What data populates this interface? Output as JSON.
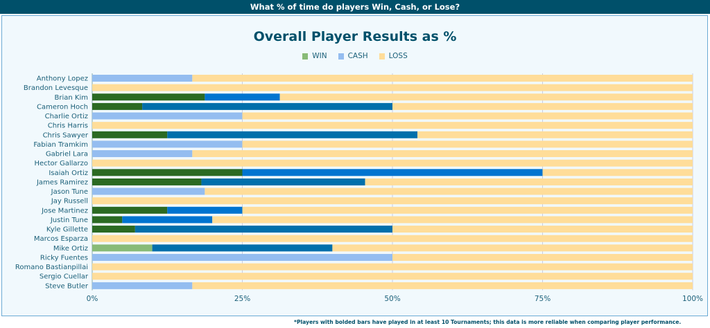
{
  "header": {
    "title": "What % of time do players Win, Cash, or Lose?"
  },
  "footer": {
    "note": "*Players with bolded bars have played in at least 10 Tournaments; this data is more reliable when comparing player performance."
  },
  "chart_data": {
    "type": "bar",
    "orientation": "horizontal",
    "stacked": true,
    "title": "Overall Player Results as %",
    "legend": [
      "WIN",
      "CASH",
      "LOSS"
    ],
    "legend_placement": "top-center",
    "colors": {
      "win": "#88bb77",
      "cash": "#94bdf0",
      "loss": "#ffdd99",
      "win_bold": "#2b6a22",
      "cash_bold": "#0074d0",
      "cash_bold_alt": "#006fab"
    },
    "xlim": [
      0,
      100
    ],
    "xticks": [
      "0%",
      "25%",
      "50%",
      "75%",
      "100%"
    ],
    "categories": [
      "Anthony Lopez",
      "Brandon Levesque",
      "Brian Kim",
      "Cameron Hoch",
      "Charlie Ortiz",
      "Chris Harris",
      "Chris Sawyer",
      "Fabian Tramkim",
      "Gabriel Lara",
      "Hector Gallarzo",
      "Isaiah Ortiz",
      "James Ramirez",
      "Jason Tune",
      "Jay Russell",
      "Jose Martinez",
      "Justin Tune",
      "Kyle Gillette",
      "Marcos Esparza",
      "Mike Ortiz",
      "Ricky Fuentes",
      "Romano Bastianpillai",
      "Sergio Cuellar",
      "Steve Butler"
    ],
    "series": [
      {
        "name": "WIN",
        "values": [
          0,
          0,
          18.75,
          8.33,
          0,
          0,
          12.5,
          0,
          0,
          0,
          25,
          18.18,
          0,
          0,
          12.5,
          5,
          7.14,
          0,
          10,
          0,
          0,
          0,
          0
        ]
      },
      {
        "name": "CASH",
        "values": [
          16.67,
          0,
          12.5,
          41.67,
          25,
          0,
          41.67,
          25,
          16.67,
          0,
          50,
          27.27,
          18.75,
          0,
          12.5,
          15,
          42.86,
          0,
          30,
          50,
          0,
          0,
          16.67
        ]
      },
      {
        "name": "LOSS",
        "values": [
          83.33,
          100,
          68.75,
          50,
          75,
          100,
          45.83,
          75,
          83.33,
          100,
          25,
          54.55,
          81.25,
          100,
          75,
          80,
          50,
          100,
          60,
          50,
          100,
          100,
          83.33
        ]
      }
    ],
    "bolded_win": [
      false,
      false,
      true,
      true,
      false,
      false,
      true,
      false,
      false,
      false,
      true,
      true,
      false,
      false,
      true,
      true,
      true,
      false,
      false,
      false,
      false,
      false,
      false
    ],
    "bolded_cash": [
      false,
      false,
      true,
      true,
      false,
      false,
      true,
      false,
      false,
      false,
      true,
      true,
      false,
      false,
      true,
      true,
      true,
      false,
      true,
      false,
      false,
      false,
      false
    ],
    "cash_alt_shade": [
      false,
      false,
      false,
      true,
      false,
      false,
      true,
      false,
      false,
      false,
      false,
      true,
      false,
      false,
      false,
      false,
      true,
      false,
      true,
      false,
      false,
      false,
      false
    ]
  }
}
